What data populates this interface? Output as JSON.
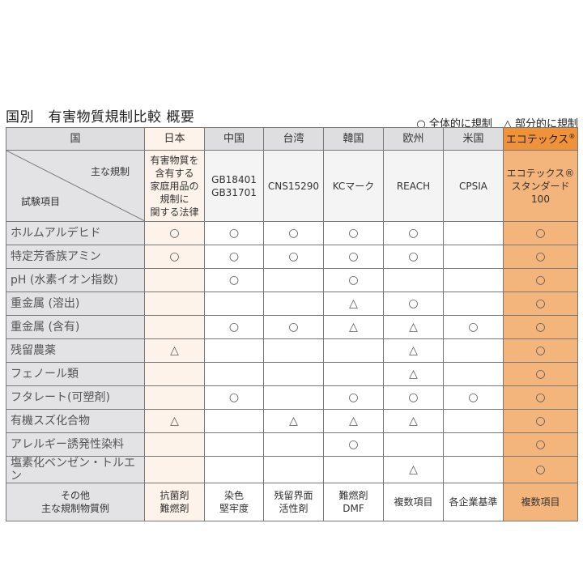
{
  "title": "国別　有害物質規制比較 概要",
  "legend": {
    "full": "○ 全体的に規制",
    "partial": "△ 部分的に規制"
  },
  "colors": {
    "header_gray": "#dedee0",
    "japan_bg": "#fdf3ea",
    "oeko_header": "#f0923a",
    "oeko_body": "#f4b57c"
  },
  "header": {
    "corner": "国",
    "countries": [
      "日本",
      "中国",
      "台湾",
      "韓国",
      "欧州",
      "米国",
      "エコテックス"
    ],
    "oeko_mark": "®"
  },
  "regulations": {
    "label_top": "主な規制",
    "label_bottom": "試験項目",
    "values": [
      "有害物質を\n含有する\n家庭用品の\n規制に\n関する法律",
      "GB18401\nGB31701",
      "CNS15290",
      "KCマーク",
      "REACH",
      "CPSIA",
      "エコテックス®\nスタンダード\n100"
    ]
  },
  "rows": [
    {
      "item": "ホルムアルデヒド",
      "marks": [
        "○",
        "○",
        "○",
        "○",
        "○",
        "",
        "○"
      ]
    },
    {
      "item": "特定芳香族アミン",
      "marks": [
        "○",
        "○",
        "○",
        "○",
        "○",
        "",
        "○"
      ]
    },
    {
      "item": "pH (水素イオン指数)",
      "marks": [
        "",
        "○",
        "",
        "○",
        "",
        "",
        "○"
      ]
    },
    {
      "item": "重金属 (溶出)",
      "marks": [
        "",
        "",
        "",
        "△",
        "○",
        "",
        "○"
      ]
    },
    {
      "item": "重金属 (含有)",
      "marks": [
        "",
        "○",
        "○",
        "△",
        "△",
        "○",
        "○"
      ]
    },
    {
      "item": "残留農薬",
      "marks": [
        "△",
        "",
        "",
        "",
        "△",
        "",
        "○"
      ]
    },
    {
      "item": "フェノール類",
      "marks": [
        "",
        "",
        "",
        "",
        "△",
        "",
        "○"
      ]
    },
    {
      "item": "フタレート(可塑剤)",
      "marks": [
        "",
        "○",
        "",
        "○",
        "○",
        "○",
        "○"
      ]
    },
    {
      "item": "有機スズ化合物",
      "marks": [
        "△",
        "",
        "△",
        "△",
        "△",
        "",
        "○"
      ]
    },
    {
      "item": "アレルギー誘発性染料",
      "marks": [
        "",
        "",
        "",
        "○",
        "",
        "",
        "○"
      ]
    },
    {
      "item": "塩素化ベンゼン・トルエン",
      "marks": [
        "",
        "",
        "",
        "",
        "△",
        "",
        "○"
      ]
    }
  ],
  "other": {
    "label": "その他\n主な規制物質例",
    "values": [
      "抗菌剤\n難燃剤",
      "染色\n堅牢度",
      "残留界面\n活性剤",
      "難燃剤\nDMF",
      "複数項目",
      "各企業基準",
      "複数項目"
    ]
  }
}
